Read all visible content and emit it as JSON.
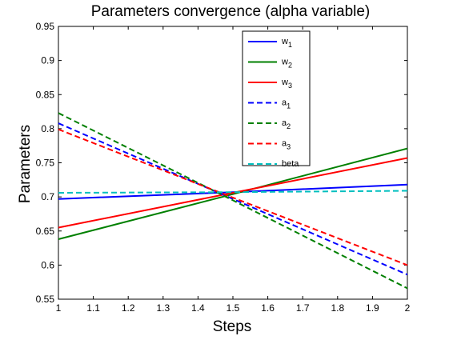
{
  "chart_data": {
    "type": "line",
    "title": "Parameters convergence (alpha variable)",
    "xlabel": "Steps",
    "ylabel": "Parameters",
    "xlim": [
      1,
      2
    ],
    "ylim": [
      0.55,
      0.95
    ],
    "x_ticks": [
      "1",
      "1.1",
      "1.2",
      "1.3",
      "1.4",
      "1.5",
      "1.6",
      "1.7",
      "1.8",
      "1.9",
      "2"
    ],
    "y_ticks": [
      "0.55",
      "0.6",
      "0.65",
      "0.7",
      "0.75",
      "0.8",
      "0.85",
      "0.9",
      "0.95"
    ],
    "grid": false,
    "legend_position": "top-center",
    "series": [
      {
        "name": "w",
        "subscript": "1",
        "color": "#0000ff",
        "style": "solid",
        "x": [
          1,
          1.5,
          2
        ],
        "y": [
          0.697,
          0.707,
          0.718
        ]
      },
      {
        "name": "w",
        "subscript": "2",
        "color": "#008000",
        "style": "solid",
        "x": [
          1,
          1.5,
          2
        ],
        "y": [
          0.638,
          0.704,
          0.771
        ]
      },
      {
        "name": "w",
        "subscript": "3",
        "color": "#ff0000",
        "style": "solid",
        "x": [
          1,
          1.5,
          2
        ],
        "y": [
          0.655,
          0.706,
          0.757
        ]
      },
      {
        "name": "a",
        "subscript": "1",
        "color": "#0000ff",
        "style": "dashed",
        "x": [
          1,
          1.5,
          2
        ],
        "y": [
          0.808,
          0.697,
          0.586
        ]
      },
      {
        "name": "a",
        "subscript": "2",
        "color": "#008000",
        "style": "dashed",
        "x": [
          1,
          1.5,
          2
        ],
        "y": [
          0.823,
          0.695,
          0.566
        ]
      },
      {
        "name": "a",
        "subscript": "3",
        "color": "#ff0000",
        "style": "dashed",
        "x": [
          1,
          1.5,
          2
        ],
        "y": [
          0.799,
          0.699,
          0.6
        ]
      },
      {
        "name": "beta",
        "subscript": "",
        "color": "#00bfbf",
        "style": "dashed",
        "x": [
          1,
          1.5,
          2
        ],
        "y": [
          0.706,
          0.707,
          0.709
        ]
      }
    ]
  }
}
